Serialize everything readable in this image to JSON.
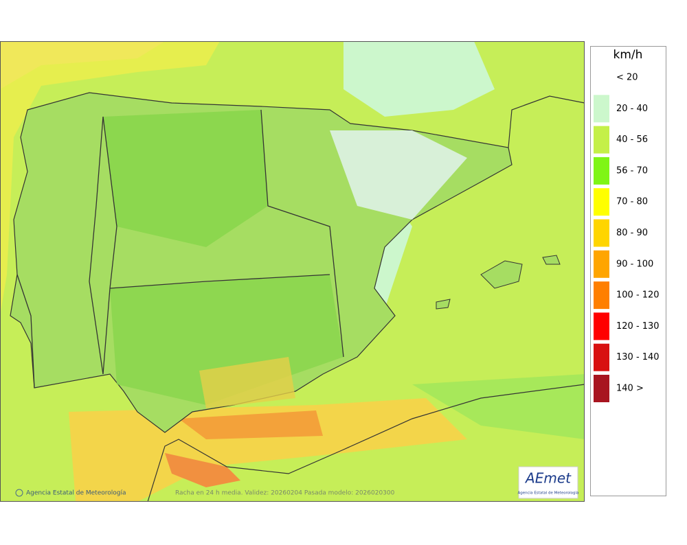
{
  "map": {
    "credit": "Agencia Estatal de Meteorología",
    "caption": "Racha en 24 h media. Validez: 20260204 Pasada modelo: 2026020300"
  },
  "logo": {
    "name": "AEmet",
    "subtitle": "Agencia Estatal de Meteorología"
  },
  "legend": {
    "unit": "km/h",
    "items": [
      {
        "label": "< 20",
        "color": "#ffffff"
      },
      {
        "label": "20 - 40",
        "color": "#ccf7cc"
      },
      {
        "label": "40 - 56",
        "color": "#c4f048"
      },
      {
        "label": "56 - 70",
        "color": "#7ff516"
      },
      {
        "label": "70 - 80",
        "color": "#ffff00"
      },
      {
        "label": "80 - 90",
        "color": "#ffd500"
      },
      {
        "label": "90 - 100",
        "color": "#ffa500"
      },
      {
        "label": "100 - 120",
        "color": "#ff7f00"
      },
      {
        "label": "120 - 130",
        "color": "#ff0000"
      },
      {
        "label": "130 - 140",
        "color": "#d81010"
      },
      {
        "label": "140 >",
        "color": "#a81520"
      }
    ]
  }
}
